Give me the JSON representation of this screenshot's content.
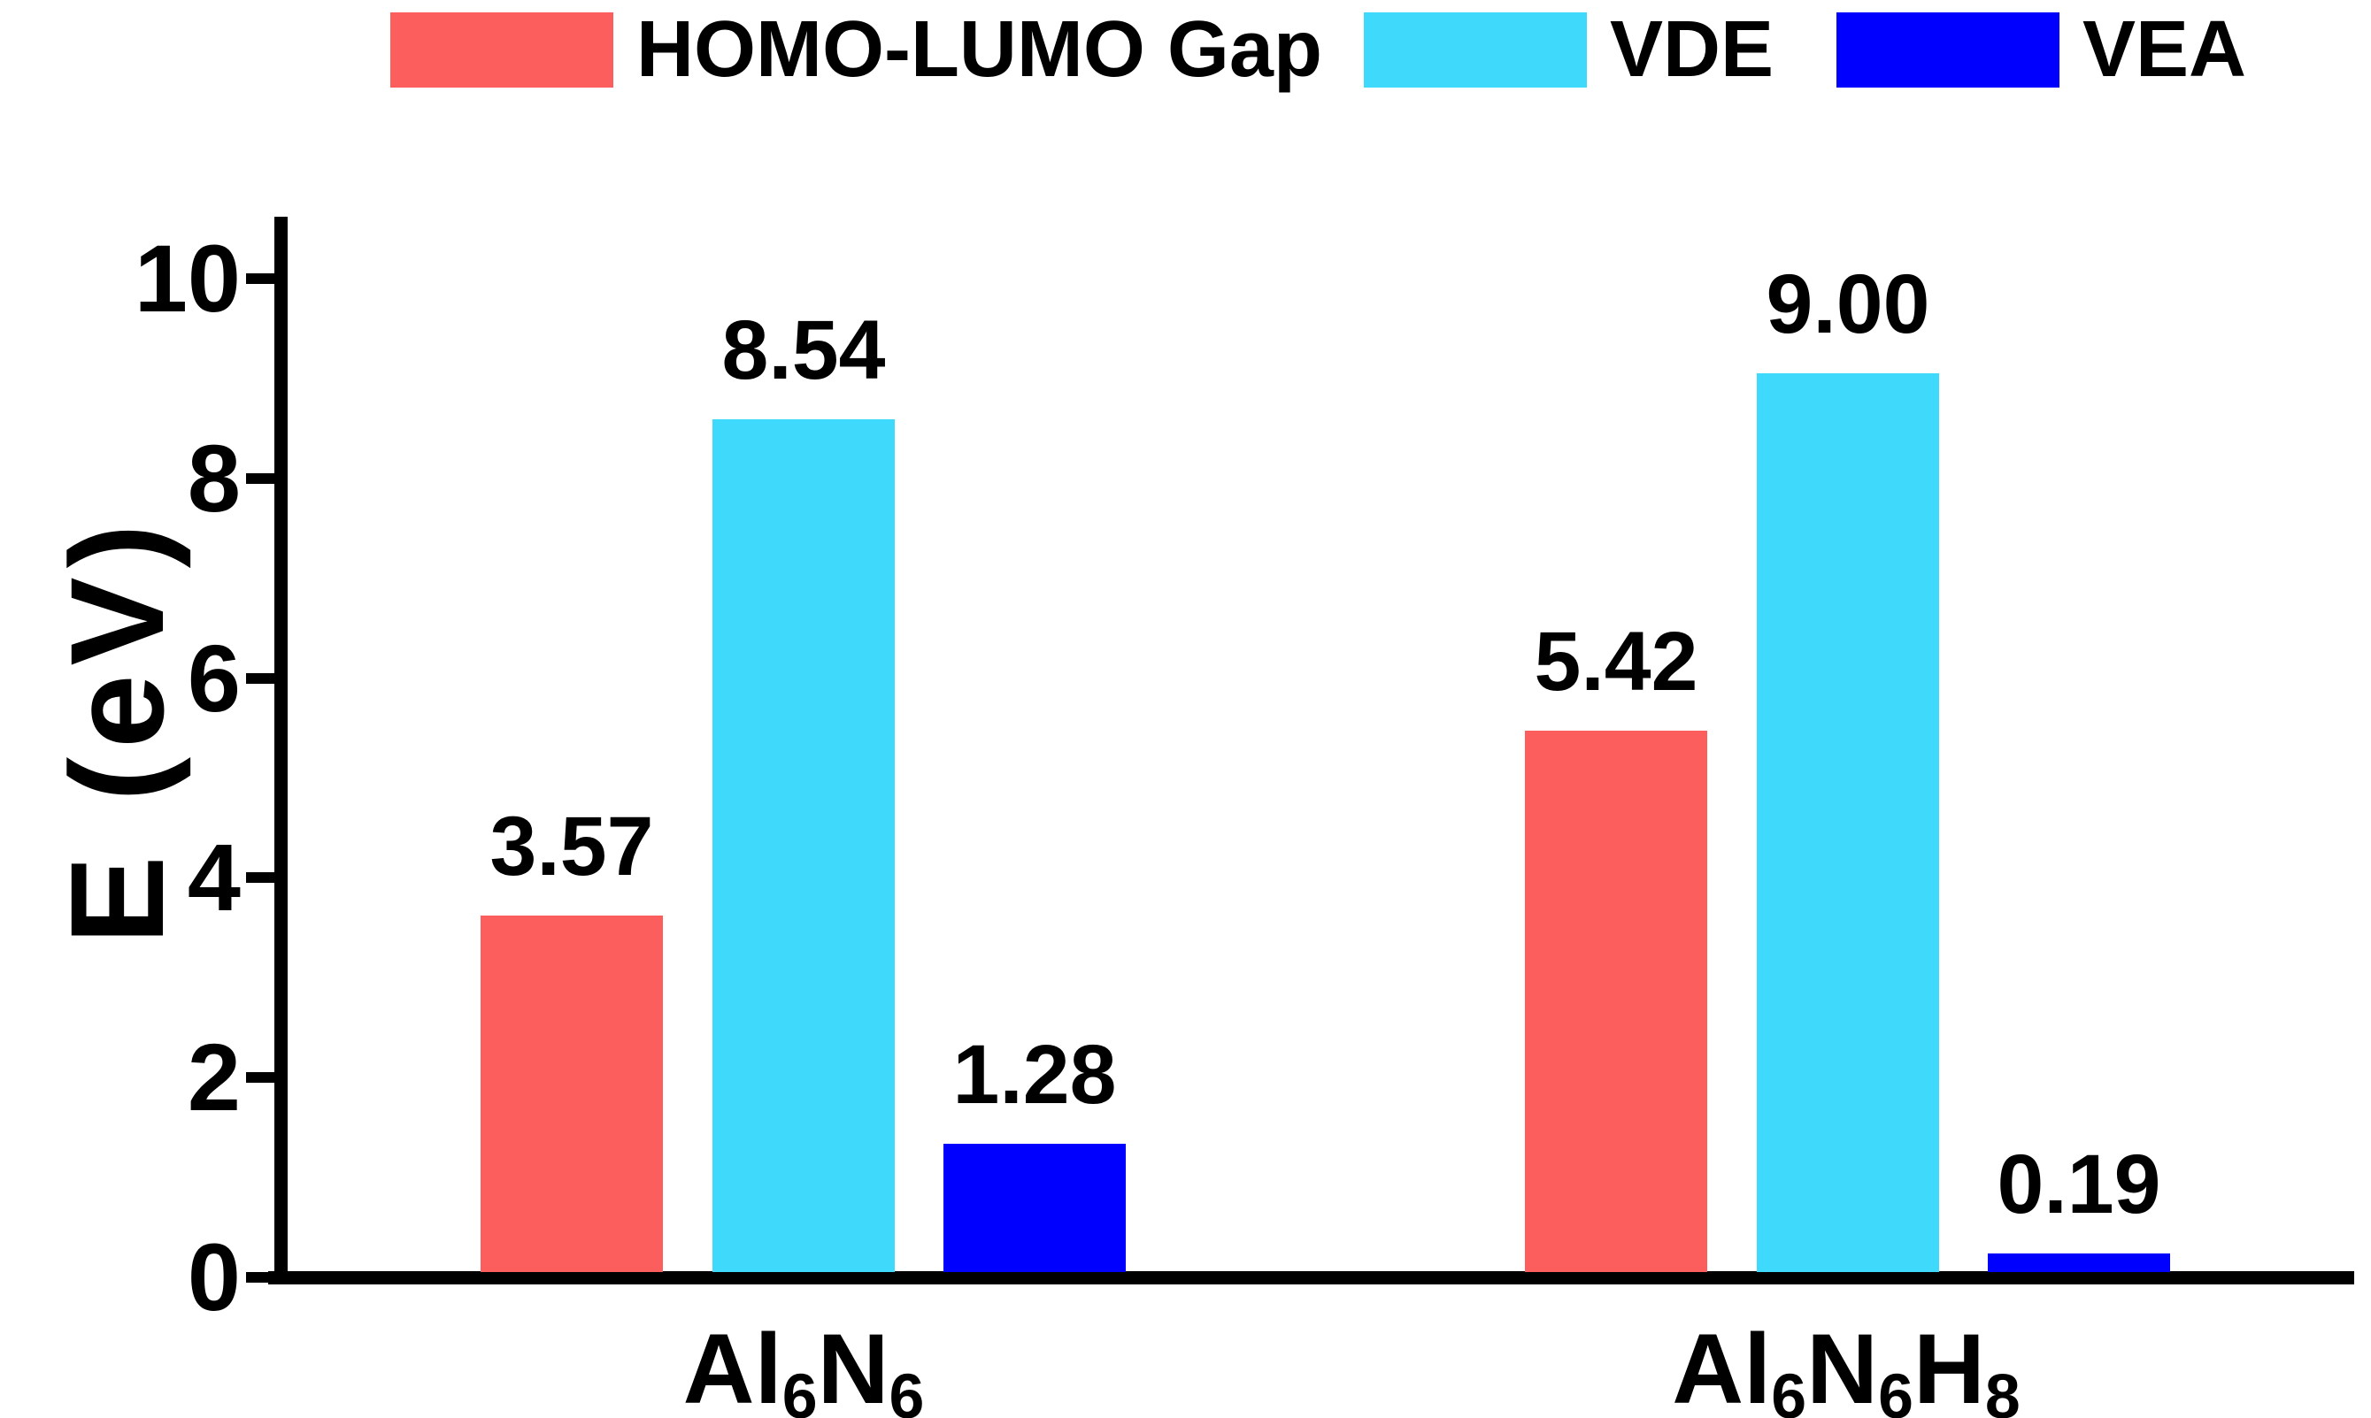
{
  "chart_data": {
    "type": "bar",
    "title": "",
    "ylabel": "E (eV)",
    "xlabel": "",
    "ylim": [
      0,
      10
    ],
    "yticks": [
      "0",
      "2",
      "4",
      "6",
      "8",
      "10"
    ],
    "grid": false,
    "legend_position": "top",
    "background_color": "#FFFFFF",
    "axis_color": "#000000",
    "categories": [
      "Al6N6",
      "Al6N6H8"
    ],
    "categories_formatted": [
      "Al_6N_6",
      "Al_6N_6H_8"
    ],
    "series": [
      {
        "name": "HOMO-LUMO Gap",
        "color": "#FC5E5E",
        "values": [
          3.57,
          5.42
        ],
        "value_labels": [
          "3.57",
          "5.42"
        ]
      },
      {
        "name": "VDE",
        "color": "#3FD9FC",
        "values": [
          8.54,
          9.0
        ],
        "value_labels": [
          "8.54",
          "9.00"
        ]
      },
      {
        "name": "VEA",
        "color": "#0000FE",
        "values": [
          1.28,
          0.19
        ],
        "value_labels": [
          "1.28",
          "0.19"
        ]
      }
    ]
  }
}
